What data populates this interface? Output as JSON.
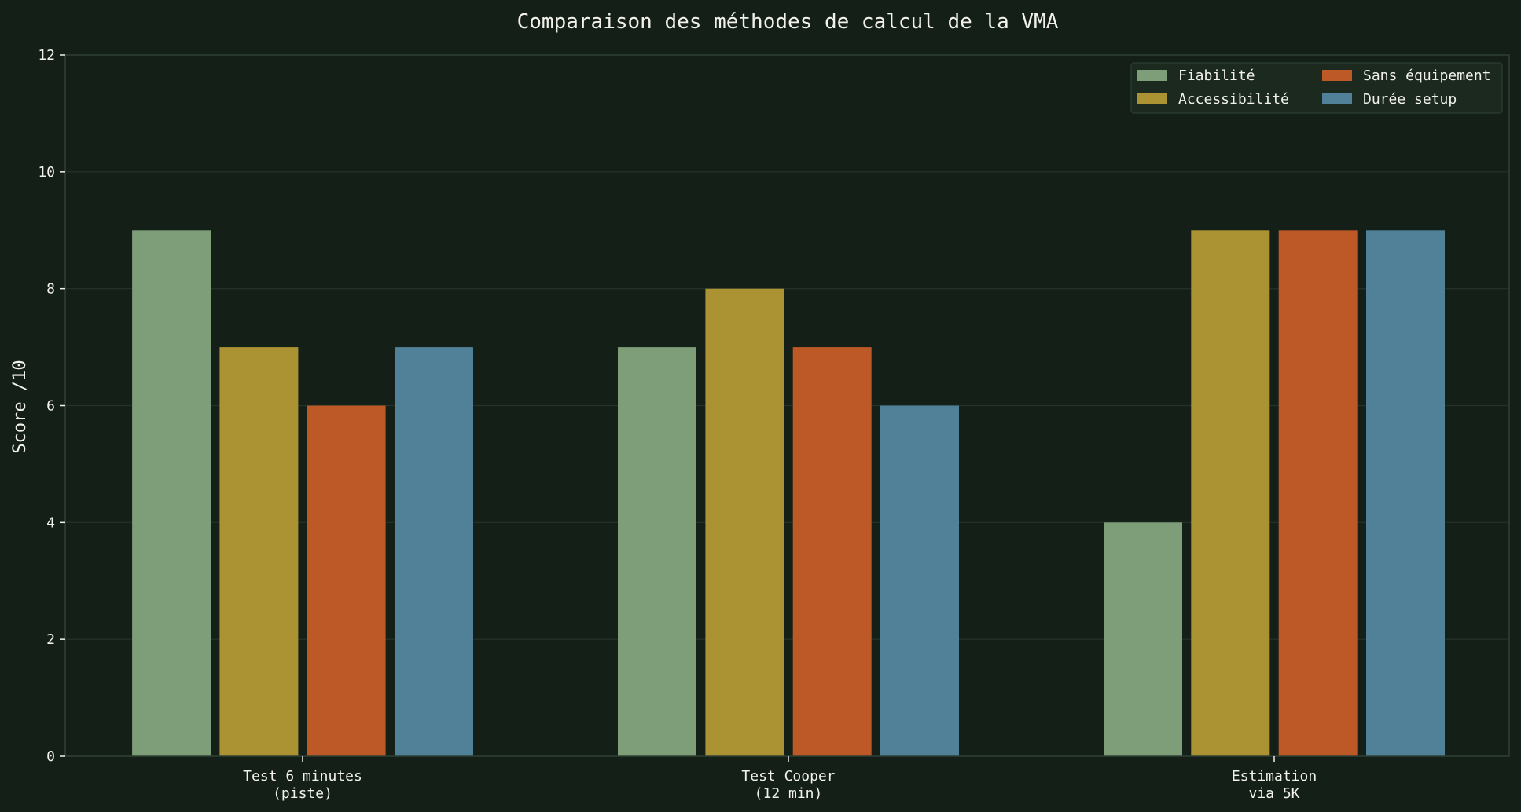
{
  "chart_data": {
    "type": "bar",
    "title": "Comparaison des méthodes de calcul de la VMA",
    "xlabel": "",
    "ylabel": "Score /10",
    "ylim": [
      0,
      12
    ],
    "yticks": [
      0,
      2,
      4,
      6,
      8,
      10,
      12
    ],
    "grid": true,
    "legend_position": "top-right",
    "categories": [
      [
        "Test 6 minutes",
        "(piste)"
      ],
      [
        "Test Cooper",
        "(12 min)"
      ],
      [
        "Estimation",
        "via 5K"
      ]
    ],
    "series": [
      {
        "name": "Fiabilité",
        "color": "#7d9e78",
        "values": [
          9,
          7,
          4
        ]
      },
      {
        "name": "Accessibilité",
        "color": "#ab9232",
        "values": [
          7,
          8,
          9
        ]
      },
      {
        "name": "Sans équipement",
        "color": "#bd5827",
        "values": [
          6,
          7,
          9
        ]
      },
      {
        "name": "Durée setup",
        "color": "#508199",
        "values": [
          7,
          6,
          9
        ]
      }
    ]
  },
  "colors": {
    "background": "#141f18",
    "text": "#f2f2ea",
    "grid": "#24332a",
    "axis": "#2e4034",
    "legend_bg": "#1c2a20"
  }
}
